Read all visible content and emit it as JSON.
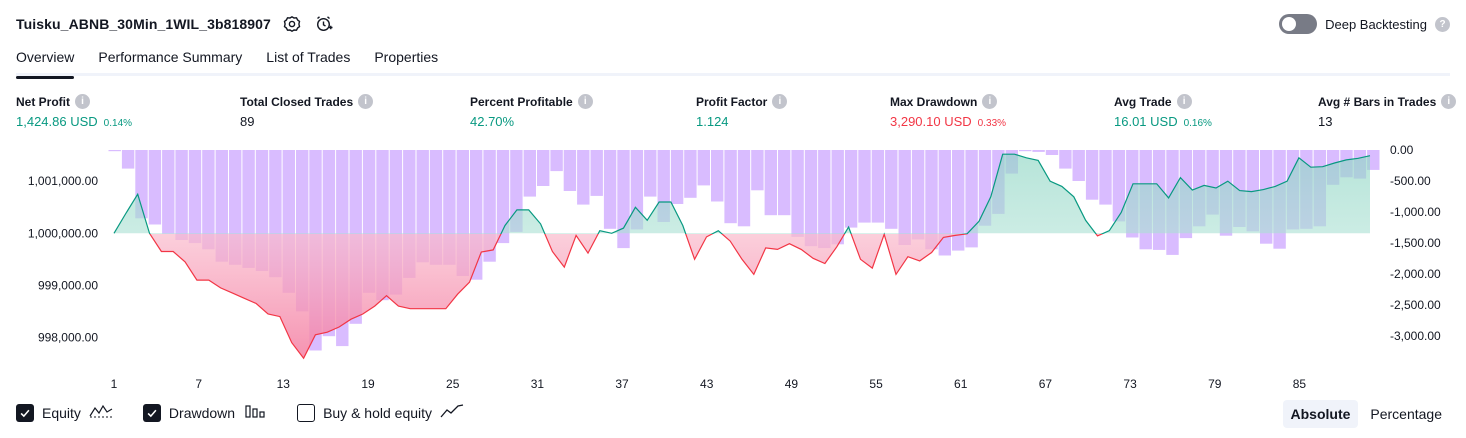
{
  "header": {
    "strategy_name": "Tuisku_ABNB_30Min_1WIL_3b818907",
    "deep_backtesting_label": "Deep Backtesting"
  },
  "tabs": [
    {
      "label": "Overview",
      "active": true
    },
    {
      "label": "Performance Summary",
      "active": false
    },
    {
      "label": "List of Trades",
      "active": false
    },
    {
      "label": "Properties",
      "active": false
    }
  ],
  "metrics": [
    {
      "label": "Net Profit",
      "value": "1,424.86 USD",
      "pct": "0.14%",
      "tone": "pos"
    },
    {
      "label": "Total Closed Trades",
      "value": "89",
      "pct": "",
      "tone": "neutral"
    },
    {
      "label": "Percent Profitable",
      "value": "42.70%",
      "pct": "",
      "tone": "pos"
    },
    {
      "label": "Profit Factor",
      "value": "1.124",
      "pct": "",
      "tone": "pos"
    },
    {
      "label": "Max Drawdown",
      "value": "3,290.10 USD",
      "pct": "0.33%",
      "tone": "neg"
    },
    {
      "label": "Avg Trade",
      "value": "16.01 USD",
      "pct": "0.16%",
      "tone": "pos"
    },
    {
      "label": "Avg # Bars in Trades",
      "value": "13",
      "pct": "",
      "tone": "neutral"
    }
  ],
  "legend": {
    "equity_label": "Equity",
    "drawdown_label": "Drawdown",
    "buy_hold_label": "Buy & hold equity",
    "equity_checked": true,
    "drawdown_checked": true,
    "buy_hold_checked": false
  },
  "mode": {
    "absolute_label": "Absolute",
    "percentage_label": "Percentage",
    "active": "Absolute"
  },
  "colors": {
    "profit": "#089981",
    "loss": "#f23645",
    "drawdown_bar": "#d9bcff",
    "profit_fill": "#bfe6dc",
    "loss_fill": "#f7a6be"
  },
  "chart_data": {
    "type": "area",
    "title": "",
    "x_ticks": [
      "1",
      "7",
      "13",
      "19",
      "25",
      "31",
      "37",
      "43",
      "49",
      "55",
      "61",
      "67",
      "73",
      "79",
      "85"
    ],
    "left_axis": {
      "ticks": [
        "1,001,000.00",
        "1,000,000.00",
        "999,000.00",
        "998,000.00"
      ],
      "range": [
        997450,
        1001600
      ],
      "baseline": 1000000
    },
    "right_axis": {
      "ticks": [
        "0.00",
        "-500.00",
        "-1,000.00",
        "-1,500.00",
        "-2,000.00",
        "-2,500.00",
        "-3,000.00"
      ],
      "range": [
        -3480,
        0
      ]
    },
    "series": [
      {
        "name": "Equity",
        "values": [
          1000000,
          1000380,
          1000750,
          1000000,
          999650,
          999650,
          999450,
          999100,
          999100,
          998950,
          998850,
          998750,
          998650,
          998450,
          998400,
          997900,
          997600,
          998050,
          998100,
          998200,
          998350,
          998450,
          998600,
          998800,
          998600,
          998550,
          998550,
          998550,
          998550,
          998830,
          999060,
          999640,
          999680,
          1000150,
          1000450,
          1000450,
          1000180,
          999650,
          999350,
          999960,
          999620,
          1000050,
          1000000,
          1000100,
          1000500,
          1000250,
          1000600,
          1000600,
          1000150,
          999500,
          999930,
          1000050,
          999850,
          999500,
          999210,
          999720,
          999690,
          999800,
          999690,
          999520,
          999420,
          999740,
          1000120,
          999500,
          999330,
          999980,
          999210,
          999550,
          999470,
          999630,
          999920,
          999960,
          999990,
          1000230,
          1000700,
          1001520,
          1001520,
          1001450,
          1001400,
          1001000,
          1000900,
          1000700,
          1000250,
          999950,
          1000050,
          1000400,
          1000950,
          1000950,
          1000950,
          1000680,
          1001070,
          1000830,
          1000920,
          1000870,
          1001000,
          1000820,
          1000800,
          1000840,
          1000900,
          1001000,
          1001450,
          1001270,
          1001280,
          1001350,
          1001410,
          1001440,
          1001490
        ]
      },
      {
        "name": "Drawdown",
        "values": [
          -20,
          -300,
          -1100,
          -1200,
          -1350,
          -1450,
          -1500,
          -1600,
          -1800,
          -1850,
          -1900,
          -1950,
          -2050,
          -2300,
          -2600,
          -3230,
          -3000,
          -3160,
          -2800,
          -2300,
          -2420,
          -2330,
          -2060,
          -1810,
          -1850,
          -1850,
          -2030,
          -2090,
          -1800,
          -1500,
          -1320,
          -750,
          -580,
          -340,
          -660,
          -880,
          -740,
          -1270,
          -1580,
          -1280,
          -750,
          -1160,
          -870,
          -770,
          -570,
          -830,
          -1180,
          -1230,
          -650,
          -1050,
          -1050,
          -1400,
          -1550,
          -1580,
          -1520,
          -1250,
          -1170,
          -1170,
          -1270,
          -1530,
          -1440,
          -1600,
          -1700,
          -1620,
          -1570,
          -1220,
          -1030,
          -380,
          -20,
          -30,
          -80,
          -300,
          -500,
          -800,
          -880,
          -1150,
          -1410,
          -1600,
          -1610,
          -1690,
          -1420,
          -1230,
          -1040,
          -1380,
          -1240,
          -1310,
          -1510,
          -1590,
          -1280,
          -1270,
          -1230,
          -560,
          -440,
          -460,
          -320
        ]
      }
    ],
    "xlabel": "",
    "ylabel": "",
    "grid": false,
    "legend_position": "bottom-left"
  }
}
